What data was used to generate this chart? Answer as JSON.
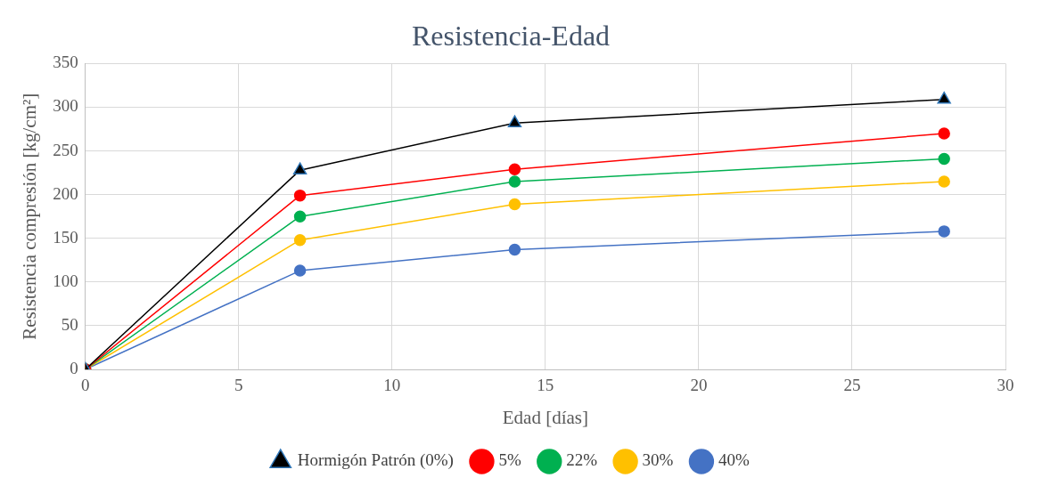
{
  "chart_data": {
    "type": "line",
    "title": "Resistencia-Edad",
    "xlabel": "Edad [días]",
    "ylabel": "Resistencia compresión [kg/cm²]",
    "x": [
      0,
      7,
      14,
      28
    ],
    "series": [
      {
        "name": "Hormigón Patrón (0%)",
        "color": "#000000",
        "marker": "triangle",
        "values": [
          0,
          228,
          282,
          309
        ]
      },
      {
        "name": "5%",
        "color": "#ff0000",
        "marker": "circle",
        "values": [
          0,
          199,
          229,
          270
        ]
      },
      {
        "name": "22%",
        "color": "#00b050",
        "marker": "circle",
        "values": [
          0,
          175,
          215,
          241
        ]
      },
      {
        "name": "30%",
        "color": "#ffc000",
        "marker": "circle",
        "values": [
          0,
          148,
          189,
          215
        ]
      },
      {
        "name": "40%",
        "color": "#4472c4",
        "marker": "circle",
        "values": [
          0,
          113,
          137,
          158
        ]
      }
    ],
    "xlim": [
      0,
      30
    ],
    "xticks": [
      0,
      5,
      10,
      15,
      20,
      25,
      30
    ],
    "ylim": [
      0,
      350
    ],
    "yticks": [
      0,
      50,
      100,
      150,
      200,
      250,
      300,
      350
    ],
    "grid": true,
    "legend": "bottom",
    "line_style": "solid"
  }
}
